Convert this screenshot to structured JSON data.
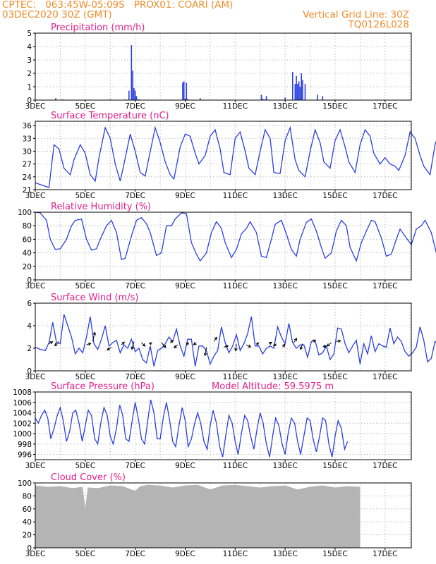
{
  "header": {
    "line1_left": "CPTEC:   063:45W-05:09S   PROX01: COARI (AM)",
    "line2_left": "03DEC2020 30Z (GMT)",
    "line2_right": "Vertical Grid Line: 30Z",
    "line3_right": "TQ0126L028"
  },
  "colors": {
    "header": "#f08c28",
    "title": "#e0208c",
    "series": "#2b3fe0",
    "cloud": "#b4b4b4",
    "wind_arrow": "#000000"
  },
  "chart_data": [
    {
      "id": "precip",
      "type": "bar",
      "title": "Precipitation (mm/h)",
      "ylim": [
        0,
        5
      ],
      "yticks": [
        "0",
        "1",
        "2",
        "3",
        "4",
        "5"
      ],
      "x_labels": [
        "3DEC",
        "5DEC",
        "7DEC",
        "9DEC",
        "11DEC",
        "13DEC",
        "15DEC",
        "17DEC"
      ],
      "grid": true,
      "x": [
        0.82,
        1.1,
        3.0,
        3.6,
        3.75,
        3.85,
        3.9,
        3.95,
        4.0,
        4.05,
        4.1,
        4.15,
        5.9,
        5.95,
        6.0,
        6.05,
        6.1,
        6.6,
        9.05,
        9.1,
        9.15,
        9.2,
        9.25,
        10.0,
        10.3,
        10.4,
        10.45,
        10.5,
        10.55,
        10.6,
        10.65,
        10.7,
        10.8,
        11.3,
        11.5
      ],
      "values": [
        0.15,
        0.05,
        0.05,
        0.05,
        0.7,
        4.1,
        2.2,
        0.9,
        0.7,
        0.3,
        0.05,
        0.05,
        1.3,
        1.4,
        0.1,
        1.3,
        0.1,
        0.15,
        0.4,
        0.1,
        0.05,
        0.05,
        0.3,
        0.2,
        2.1,
        1.2,
        1.8,
        1.2,
        1.4,
        1.0,
        2.0,
        1.5,
        1.2,
        0.4,
        0.3
      ]
    },
    {
      "id": "temp",
      "type": "line",
      "title": "Surface Temperature (nC)",
      "ylim": [
        21,
        37
      ],
      "yticks": [
        "21",
        "24",
        "27",
        "30",
        "33",
        "36"
      ],
      "x_labels": [
        "3DEC",
        "5DEC",
        "7DEC",
        "9DEC",
        "11DEC",
        "13DEC",
        "15DEC",
        "17DEC"
      ],
      "grid": true,
      "x": [
        0,
        0.2,
        0.4,
        0.55,
        0.75,
        0.95,
        1.15,
        1.4,
        1.55,
        1.8,
        2.0,
        2.2,
        2.4,
        2.55,
        2.8,
        3.0,
        3.2,
        3.4,
        3.55,
        3.8,
        4.0,
        4.2,
        4.4,
        4.55,
        4.8,
        5.0,
        5.2,
        5.4,
        5.55,
        5.8,
        6.0,
        6.2,
        6.4,
        6.55,
        6.8,
        7.0,
        7.2,
        7.4,
        7.55,
        7.8,
        8.0,
        8.2,
        8.4,
        8.55,
        8.8,
        9.0,
        9.2,
        9.4,
        9.55,
        9.8,
        10.0,
        10.2,
        10.4,
        10.55,
        10.8,
        11.0,
        11.2,
        11.4,
        11.55,
        11.8,
        12.0,
        12.2,
        12.4,
        12.55,
        12.8,
        13.0,
        13.2,
        13.4,
        13.55,
        13.8,
        14.0,
        14.2,
        14.4,
        14.55,
        14.8,
        15.0,
        15.2,
        15.4,
        15.55,
        15.8,
        16.0,
        16.2,
        16.4,
        16.55,
        16.8,
        17.0,
        17.2,
        17.4,
        17.55,
        17.8,
        18.0,
        18.2
      ],
      "values": [
        22.6,
        22.2,
        21.8,
        21.5,
        31.5,
        30.5,
        26.0,
        24.5,
        28.0,
        31.5,
        29.5,
        24.5,
        23.0,
        28.5,
        35.5,
        33.0,
        27.0,
        23.0,
        27.0,
        34.0,
        30.0,
        25.0,
        24.2,
        28.5,
        35.5,
        32.0,
        27.5,
        24.5,
        23.5,
        31.0,
        34.0,
        33.5,
        29.5,
        27.0,
        29.0,
        33.5,
        35.0,
        30.5,
        25.0,
        24.5,
        33.0,
        34.5,
        30.0,
        26.0,
        24.5,
        30.0,
        35.0,
        33.0,
        25.0,
        24.8,
        32.5,
        35.5,
        28.0,
        25.5,
        24.0,
        30.0,
        35.0,
        32.0,
        27.5,
        26.0,
        32.5,
        35.0,
        31.0,
        27.5,
        25.0,
        31.5,
        35.0,
        33.5,
        29.5,
        27.0,
        28.5,
        27.0,
        26.5,
        25.5,
        29.0,
        34.5,
        33.0,
        29.0,
        26.5,
        24.5,
        31.5,
        35.0,
        32.0,
        24.0,
        24.5,
        30.0,
        34.0,
        32.5,
        31.0,
        25.0,
        33.5,
        32.0
      ]
    },
    {
      "id": "rh",
      "type": "line",
      "title": "Relative Humidity (%)",
      "ylim": [
        0,
        100
      ],
      "yticks": [
        "0",
        "20",
        "40",
        "60",
        "80",
        "100"
      ],
      "x_labels": [
        "3DEC",
        "5DEC",
        "7DEC",
        "9DEC",
        "11DEC",
        "13DEC",
        "15DEC",
        "17DEC"
      ],
      "grid": true,
      "x": [
        0,
        0.2,
        0.45,
        0.6,
        0.8,
        1.0,
        1.25,
        1.45,
        1.6,
        1.85,
        2.05,
        2.25,
        2.45,
        2.6,
        2.85,
        3.05,
        3.25,
        3.45,
        3.6,
        3.85,
        4.05,
        4.25,
        4.45,
        4.6,
        4.85,
        5.05,
        5.25,
        5.45,
        5.6,
        5.85,
        6.05,
        6.25,
        6.45,
        6.6,
        6.85,
        7.05,
        7.25,
        7.45,
        7.6,
        7.85,
        8.05,
        8.25,
        8.45,
        8.6,
        8.85,
        9.05,
        9.25,
        9.45,
        9.6,
        9.85,
        10.05,
        10.25,
        10.45,
        10.6,
        10.85,
        11.05,
        11.25,
        11.45,
        11.6,
        11.85,
        12.05,
        12.25,
        12.45,
        12.6,
        12.85,
        13.05,
        13.25,
        13.45,
        13.6,
        13.85,
        14.05,
        14.25,
        14.45,
        14.6,
        14.85,
        15.05,
        15.25,
        15.45,
        15.6,
        15.85,
        16.05,
        16.25
      ],
      "values": [
        100,
        99,
        88,
        60,
        45,
        46,
        60,
        80,
        88,
        90,
        60,
        44,
        46,
        60,
        80,
        88,
        70,
        30,
        32,
        65,
        88,
        92,
        83,
        70,
        36,
        40,
        80,
        80,
        90,
        99,
        98,
        55,
        38,
        28,
        40,
        70,
        86,
        76,
        55,
        33,
        45,
        68,
        76,
        86,
        70,
        35,
        33,
        60,
        82,
        88,
        68,
        45,
        35,
        60,
        85,
        90,
        72,
        48,
        32,
        40,
        72,
        88,
        80,
        48,
        28,
        55,
        72,
        88,
        86,
        62,
        35,
        38,
        60,
        75,
        62,
        52,
        75,
        80,
        88,
        70,
        40,
        35
      ]
    },
    {
      "id": "wind",
      "type": "line",
      "title": "Surface Wind (m/s)",
      "ylim": [
        0,
        6
      ],
      "yticks": [
        "0",
        "2",
        "4",
        "6"
      ],
      "x_labels": [
        "3DEC",
        "5DEC",
        "7DEC",
        "9DEC",
        "11DEC",
        "13DEC",
        "15DEC",
        "17DEC"
      ],
      "grid": true,
      "x": [
        0,
        0.2,
        0.4,
        0.55,
        0.7,
        0.85,
        1.0,
        1.15,
        1.3,
        1.45,
        1.6,
        1.75,
        1.9,
        2.05,
        2.2,
        2.35,
        2.5,
        2.65,
        2.8,
        2.95,
        3.1,
        3.25,
        3.4,
        3.55,
        3.7,
        3.85,
        4.0,
        4.15,
        4.3,
        4.45,
        4.6,
        4.75,
        4.9,
        5.05,
        5.2,
        5.35,
        5.5,
        5.65,
        5.8,
        5.95,
        6.1,
        6.25,
        6.4,
        6.55,
        6.7,
        6.85,
        7.0,
        7.15,
        7.3,
        7.45,
        7.6,
        7.75,
        7.9,
        8.05,
        8.2,
        8.35,
        8.5,
        8.65,
        8.8,
        8.95,
        9.1,
        9.25,
        9.4,
        9.55,
        9.7,
        9.85,
        10.0,
        10.15,
        10.3,
        10.45,
        10.6,
        10.75,
        10.9,
        11.05,
        11.2,
        11.35,
        11.5,
        11.65,
        11.8,
        11.95,
        12.1,
        12.25,
        12.4,
        12.55,
        12.7,
        12.85,
        13.0,
        13.15,
        13.3,
        13.45,
        13.6,
        13.75,
        13.9,
        14.05,
        14.2,
        14.35,
        14.5,
        14.65,
        14.8,
        14.95,
        15.1,
        15.25,
        15.4,
        15.55,
        15.7,
        15.85,
        16.0,
        16.15
      ],
      "values": [
        2.1,
        1.9,
        1.8,
        2.5,
        4.3,
        2.5,
        2.4,
        5.0,
        4.0,
        3.0,
        1.5,
        2.0,
        1.6,
        3.0,
        4.8,
        2.4,
        1.9,
        2.8,
        4.0,
        2.2,
        2.5,
        2.7,
        1.6,
        2.3,
        2.0,
        2.8,
        1.7,
        2.0,
        1.0,
        0.7,
        2.2,
        0.4,
        1.8,
        2.0,
        2.4,
        3.0,
        2.6,
        3.7,
        2.2,
        1.3,
        2.8,
        2.8,
        0.4,
        2.2,
        2.2,
        1.8,
        0.6,
        1.3,
        1.8,
        3.9,
        2.5,
        1.6,
        2.2,
        3.2,
        1.8,
        2.4,
        3.3,
        4.8,
        2.2,
        2.2,
        1.5,
        2.0,
        2.2,
        2.0,
        3.9,
        3.0,
        2.4,
        4.2,
        2.5,
        2.0,
        2.3,
        2.3,
        1.2,
        2.6,
        2.7,
        1.4,
        1.6,
        2.2,
        1.0,
        1.5,
        3.8,
        3.7,
        2.4,
        1.6,
        2.2,
        2.7,
        0.6,
        2.4,
        1.5,
        3.1,
        1.7,
        2.4,
        2.2,
        2.1,
        3.8,
        2.4,
        3.0,
        2.6,
        1.7,
        1.3,
        1.6,
        2.1,
        3.9,
        2.7,
        0.8,
        1.1,
        2.6,
        2.3
      ],
      "arrows": {
        "x": [
          0.55,
          0.95,
          2.05,
          2.3,
          3.05,
          3.45,
          3.95,
          4.25,
          4.65,
          5.05,
          5.4,
          5.7,
          6.05,
          6.45,
          6.85,
          7.15,
          7.55,
          8.05,
          8.45,
          8.85,
          9.35,
          9.65,
          9.9,
          10.35,
          10.7,
          11.1,
          11.55,
          11.85,
          12.05
        ],
        "y": [
          2.4,
          2.6,
          2.3,
          2.6,
          2.1,
          2.3,
          2.6,
          2.5,
          2.4,
          2.5,
          2.5,
          2.3,
          2.3,
          2.5,
          2.1,
          2.6,
          2.1,
          2.4,
          2.3,
          2.3,
          2.4,
          2.4,
          2.1,
          2.5,
          2.4,
          2.6,
          2.3,
          2.5,
          2.6
        ],
        "u": [
          0.5,
          -0.6,
          0.6,
          0.3,
          -0.6,
          0.4,
          -0.3,
          0.5,
          -0.3,
          0.6,
          0.4,
          -0.5,
          0.3,
          -0.4,
          -0.2,
          0.4,
          0.6,
          -0.1,
          0.6,
          0.3,
          0.4,
          -0.4,
          0.3,
          0.4,
          -0.3,
          0.4,
          0.2,
          -0.6,
          0.6
        ],
        "v": [
          0.3,
          -0.6,
          0.2,
          1.3,
          -0.4,
          0.4,
          -1.1,
          -0.5,
          0.1,
          -0.7,
          0.3,
          -0.4,
          0.3,
          -0.3,
          -1.2,
          0.6,
          0.2,
          -1.0,
          -0.3,
          0.3,
          0.2,
          -0.3,
          0.4,
          0.6,
          -0.8,
          0.2,
          -0.4,
          -0.5,
          0.1
        ]
      }
    },
    {
      "id": "pres",
      "type": "line",
      "title": "Surface Pressure (hPa)",
      "annotation": "Model Altitude: 59.5975 m",
      "ylim": [
        995,
        1008
      ],
      "yticks": [
        "996",
        "998",
        "1000",
        "1002",
        "1004",
        "1006",
        "1008"
      ],
      "x_labels": [
        "3DEC",
        "5DEC",
        "7DEC",
        "9DEC",
        "11DEC",
        "13DEC",
        "15DEC",
        "17DEC"
      ],
      "grid": true,
      "x": [
        0,
        0.12,
        0.25,
        0.38,
        0.5,
        0.62,
        0.75,
        0.88,
        1.0,
        1.12,
        1.25,
        1.38,
        1.5,
        1.62,
        1.75,
        1.88,
        2.0,
        2.12,
        2.25,
        2.38,
        2.5,
        2.62,
        2.75,
        2.88,
        3.0,
        3.12,
        3.25,
        3.38,
        3.5,
        3.62,
        3.75,
        3.88,
        4.0,
        4.12,
        4.25,
        4.38,
        4.5,
        4.62,
        4.75,
        4.88,
        5.0,
        5.12,
        5.25,
        5.38,
        5.5,
        5.62,
        5.75,
        5.88,
        6.0,
        6.12,
        6.25,
        6.38,
        6.5,
        6.62,
        6.75,
        6.88,
        7.0,
        7.12,
        7.25,
        7.38,
        7.5,
        7.62,
        7.75,
        7.88,
        8.0,
        8.12,
        8.25,
        8.38,
        8.5,
        8.62,
        8.75,
        8.88,
        9.0,
        9.12,
        9.25,
        9.38,
        9.5,
        9.62,
        9.75,
        9.88,
        10.0,
        10.12,
        10.25,
        10.38,
        10.5,
        10.62,
        10.75,
        10.88,
        11.0,
        11.12,
        11.25,
        11.38,
        11.5,
        11.62,
        11.75,
        11.88,
        12.0,
        12.12,
        12.25,
        12.38,
        12.5
      ],
      "values": [
        1003.0,
        1002.0,
        1003.5,
        1004.5,
        1003.0,
        999.0,
        1001.0,
        1003.5,
        1005.0,
        1002.5,
        998.5,
        1000.5,
        1004.0,
        1004.5,
        1002.0,
        998.5,
        1001.5,
        1004.5,
        1003.5,
        999.0,
        998.0,
        1002.0,
        1005.0,
        1003.5,
        999.5,
        998.0,
        1001.0,
        1005.5,
        1003.5,
        999.0,
        998.5,
        1002.5,
        1006.0,
        1003.0,
        999.0,
        998.0,
        1002.5,
        1006.5,
        1004.0,
        999.0,
        999.0,
        1003.0,
        1006.0,
        1002.5,
        998.5,
        997.5,
        1001.5,
        1005.0,
        1002.5,
        997.5,
        999.0,
        1002.0,
        1004.0,
        1002.0,
        998.5,
        997.0,
        1001.5,
        1004.5,
        1002.0,
        997.5,
        995.5,
        999.5,
        1003.5,
        1002.0,
        998.5,
        996.0,
        1000.0,
        1003.5,
        1002.5,
        999.5,
        997.0,
        1001.0,
        1004.0,
        1002.0,
        998.0,
        995.5,
        999.5,
        1003.0,
        1001.5,
        998.0,
        996.0,
        1000.0,
        1003.0,
        1002.0,
        998.5,
        996.0,
        999.5,
        1003.0,
        1002.5,
        999.0,
        996.5,
        999.5,
        1003.0,
        1002.5,
        998.0,
        995.5,
        999.5,
        1002.5,
        1001.0,
        997.0,
        998.5
      ]
    },
    {
      "id": "cloud",
      "type": "area",
      "title": "Cloud Cover (%)",
      "ylim": [
        0,
        100
      ],
      "yticks": [
        "0",
        "20",
        "40",
        "60",
        "80",
        "100"
      ],
      "x_labels": [
        "3DEC",
        "5DEC",
        "7DEC",
        "9DEC",
        "11DEC",
        "13DEC",
        "15DEC",
        "17DEC"
      ],
      "grid": true,
      "x": [
        0,
        0.5,
        1.0,
        1.5,
        1.9,
        2.0,
        2.1,
        2.5,
        3.0,
        3.5,
        3.85,
        4.0,
        4.2,
        4.5,
        5.0,
        5.5,
        6.0,
        6.5,
        7.0,
        7.5,
        8.0,
        8.5,
        9.0,
        9.5,
        10.0,
        10.5,
        11.0,
        11.5,
        12.0,
        12.5,
        13.0
      ],
      "values": [
        96,
        94,
        95,
        92,
        94,
        60,
        93,
        92,
        96,
        95,
        90,
        88,
        95,
        97,
        96,
        93,
        96,
        97,
        90,
        96,
        97,
        95,
        93,
        95,
        96,
        90,
        94,
        96,
        93,
        95,
        94
      ]
    }
  ]
}
